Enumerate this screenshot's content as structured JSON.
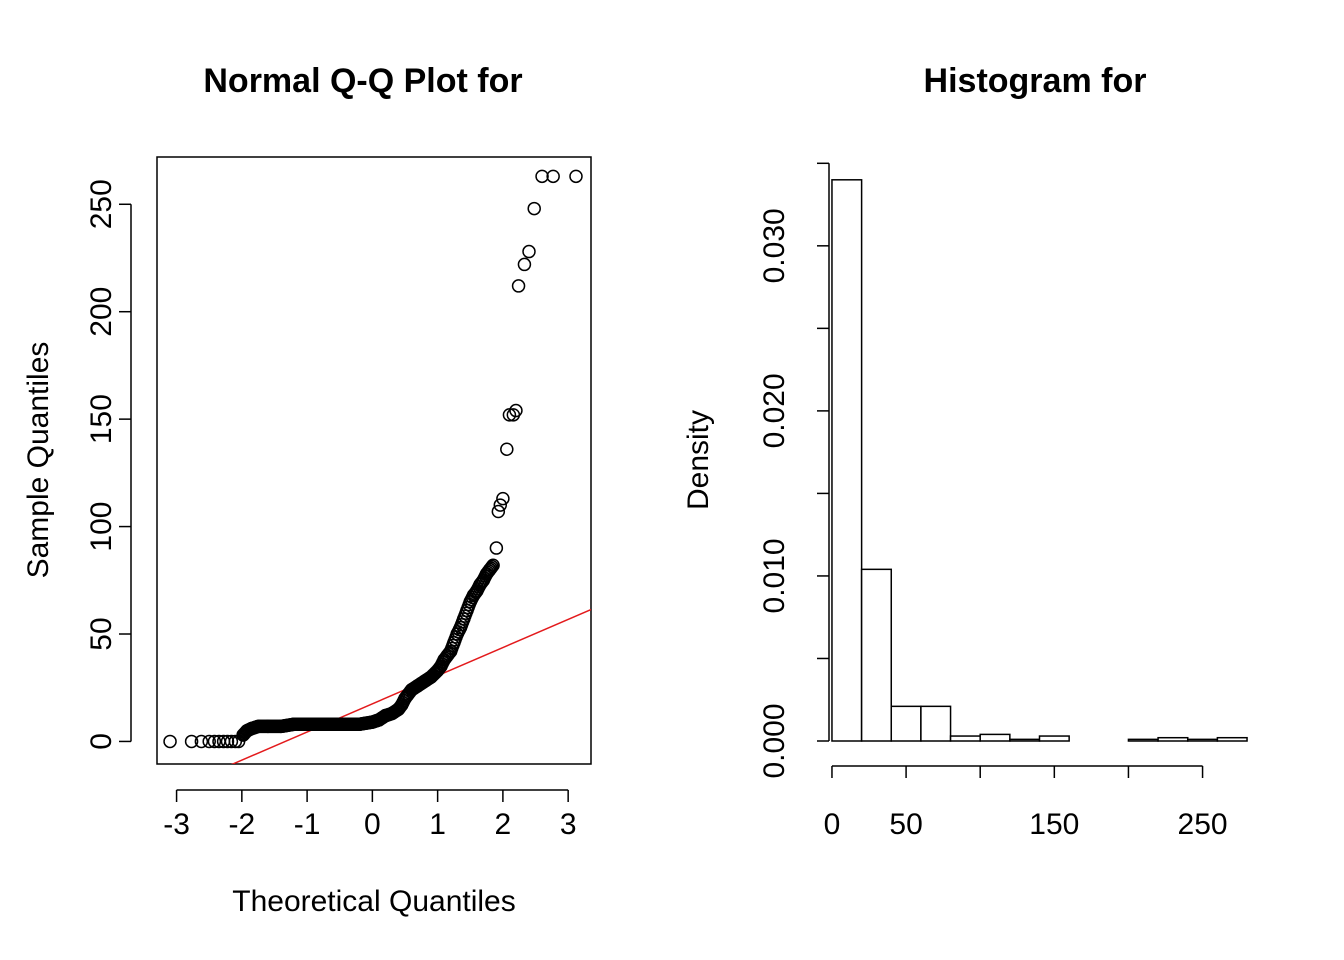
{
  "colors": {
    "reference_line": "#e31a1c",
    "ink": "#000000",
    "background": "#ffffff"
  },
  "chart_data": [
    {
      "type": "scatter",
      "title": "Normal Q-Q Plot for",
      "xlabel": "Theoretical Quantiles",
      "ylabel": "Sample Quantiles",
      "xlim": [
        -3.3,
        3.35
      ],
      "ylim": [
        -10.5,
        272
      ],
      "x_ticks": [
        -3,
        -2,
        -1,
        0,
        1,
        2,
        3
      ],
      "y_ticks": [
        0,
        50,
        100,
        150,
        200,
        250
      ],
      "reference_line": {
        "intercept": 17.5,
        "slope": 13.1
      },
      "marker": "open-circle",
      "points_description": "sample quantiles against theoretical normal quantiles",
      "x": [
        -3.1,
        -2.77,
        -2.62,
        -2.5,
        -2.42,
        -2.35,
        -2.28,
        -2.22,
        -2.16,
        -2.1,
        -2.05,
        -1.98,
        -1.92,
        -1.85,
        -1.75,
        -1.6,
        -1.4,
        -1.2,
        -1.0,
        -0.8,
        -0.6,
        -0.4,
        -0.2,
        0.0,
        0.1,
        0.2,
        0.3,
        0.4,
        0.45,
        0.5,
        0.6,
        0.7,
        0.8,
        0.9,
        1.0,
        1.05,
        1.1,
        1.15,
        1.2,
        1.25,
        1.3,
        1.35,
        1.4,
        1.45,
        1.5,
        1.55,
        1.6,
        1.65,
        1.7,
        1.75,
        1.8,
        1.85,
        1.9,
        1.93,
        1.96,
        2.0,
        2.06,
        2.1,
        2.16,
        2.2,
        2.24,
        2.33,
        2.4,
        2.48,
        2.6,
        2.77,
        3.12
      ],
      "y": [
        0,
        0,
        0,
        0,
        0,
        0,
        0,
        0,
        0,
        0,
        0,
        3,
        5,
        6,
        7,
        7,
        7,
        8,
        8,
        8,
        8,
        8,
        8,
        9,
        10,
        12,
        13,
        15,
        17,
        20,
        24,
        26,
        28,
        30,
        33,
        35,
        38,
        40,
        42,
        46,
        50,
        53,
        57,
        61,
        65,
        68,
        70,
        73,
        75,
        78,
        80,
        82,
        90,
        107,
        110,
        113,
        136,
        152,
        152,
        154,
        212,
        222,
        228,
        248,
        263,
        263,
        263
      ]
    },
    {
      "type": "bar",
      "title": "Histogram for",
      "xlabel": "",
      "ylabel": "Density",
      "xlim": [
        -2,
        282
      ],
      "ylim": [
        0,
        0.0352
      ],
      "x_ticks": [
        0,
        50,
        100,
        150,
        200,
        250
      ],
      "x_tick_labels": [
        "0",
        "50",
        "",
        "150",
        "",
        "250"
      ],
      "y_ticks": [
        0,
        0.005,
        0.01,
        0.015,
        0.02,
        0.025,
        0.03,
        0.035
      ],
      "y_tick_labels": [
        "0.000",
        "",
        "0.010",
        "",
        "0.020",
        "",
        "0.030",
        ""
      ],
      "bin_edges": [
        0,
        20,
        40,
        60,
        80,
        100,
        120,
        140,
        160,
        180,
        200,
        220,
        240,
        260,
        280
      ],
      "values": [
        0.034,
        0.0104,
        0.0021,
        0.0021,
        0.0003,
        0.0004,
        0.0001,
        0.0003,
        0,
        0,
        0.0001,
        0.0002,
        0.0001,
        0.0002
      ]
    }
  ]
}
